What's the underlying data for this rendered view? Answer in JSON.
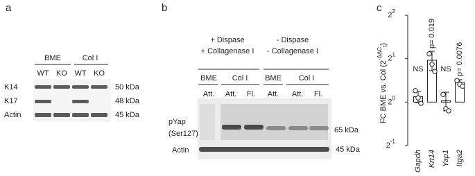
{
  "panel_a": {
    "letter": "a",
    "groups": [
      "BME",
      "Col I"
    ],
    "lanes": [
      "WT",
      "KO",
      "WT",
      "KO"
    ],
    "rows": [
      "K14",
      "K17",
      "Actin"
    ],
    "sizes": [
      "50 kDa",
      "48 kDa",
      "45 kDa"
    ]
  },
  "panel_b": {
    "letter": "b",
    "conditions": [
      [
        "+ Dispase",
        "+ Collagenase I"
      ],
      [
        "- Dispase",
        "- Collagenase I"
      ]
    ],
    "groups": [
      "BME",
      "Col I",
      "BME",
      "Col I"
    ],
    "lanes": [
      "Att.",
      "Att.",
      "Fl.",
      "Att.",
      "Att.",
      "Fl."
    ],
    "rows": [
      "pYap",
      "(Ser127)",
      "Actin"
    ],
    "sizes": [
      "65 kDa",
      "45 kDa"
    ]
  },
  "panel_c": {
    "letter": "c"
  },
  "chart_data": {
    "type": "bar",
    "log_scale": "base2",
    "y_label": {
      "text": "FC BME vs. Col (2",
      "sup": "-ΔΔC",
      "sub": "t",
      "close": ")"
    },
    "categories": [
      "Gapdh",
      "Krt14",
      "Yap1",
      "Itga2"
    ],
    "values": [
      1.09,
      1.95,
      1.02,
      1.37
    ],
    "errors": [
      0.1,
      0.3,
      0.15,
      0.06
    ],
    "points": [
      [
        1.2,
        1.07,
        0.98
      ],
      [
        2.16,
        1.83,
        1.63
      ],
      [
        1.13,
        0.9,
        0.87
      ],
      [
        1.41,
        1.33,
        1.29
      ]
    ],
    "annotations": [
      "NS",
      "p= 0.019",
      "NS",
      "p= 0.0076"
    ],
    "color": "#ffffff",
    "edge_color": "#222222",
    "ylim": [
      0.5,
      4
    ],
    "yticks": [
      {
        "value": 0.5,
        "label": "2",
        "exponent": "-1"
      },
      {
        "value": 1,
        "label": "2",
        "exponent": "0"
      },
      {
        "value": 2,
        "label": "2",
        "exponent": "1"
      },
      {
        "value": 4,
        "label": "2",
        "exponent": "2"
      }
    ]
  }
}
